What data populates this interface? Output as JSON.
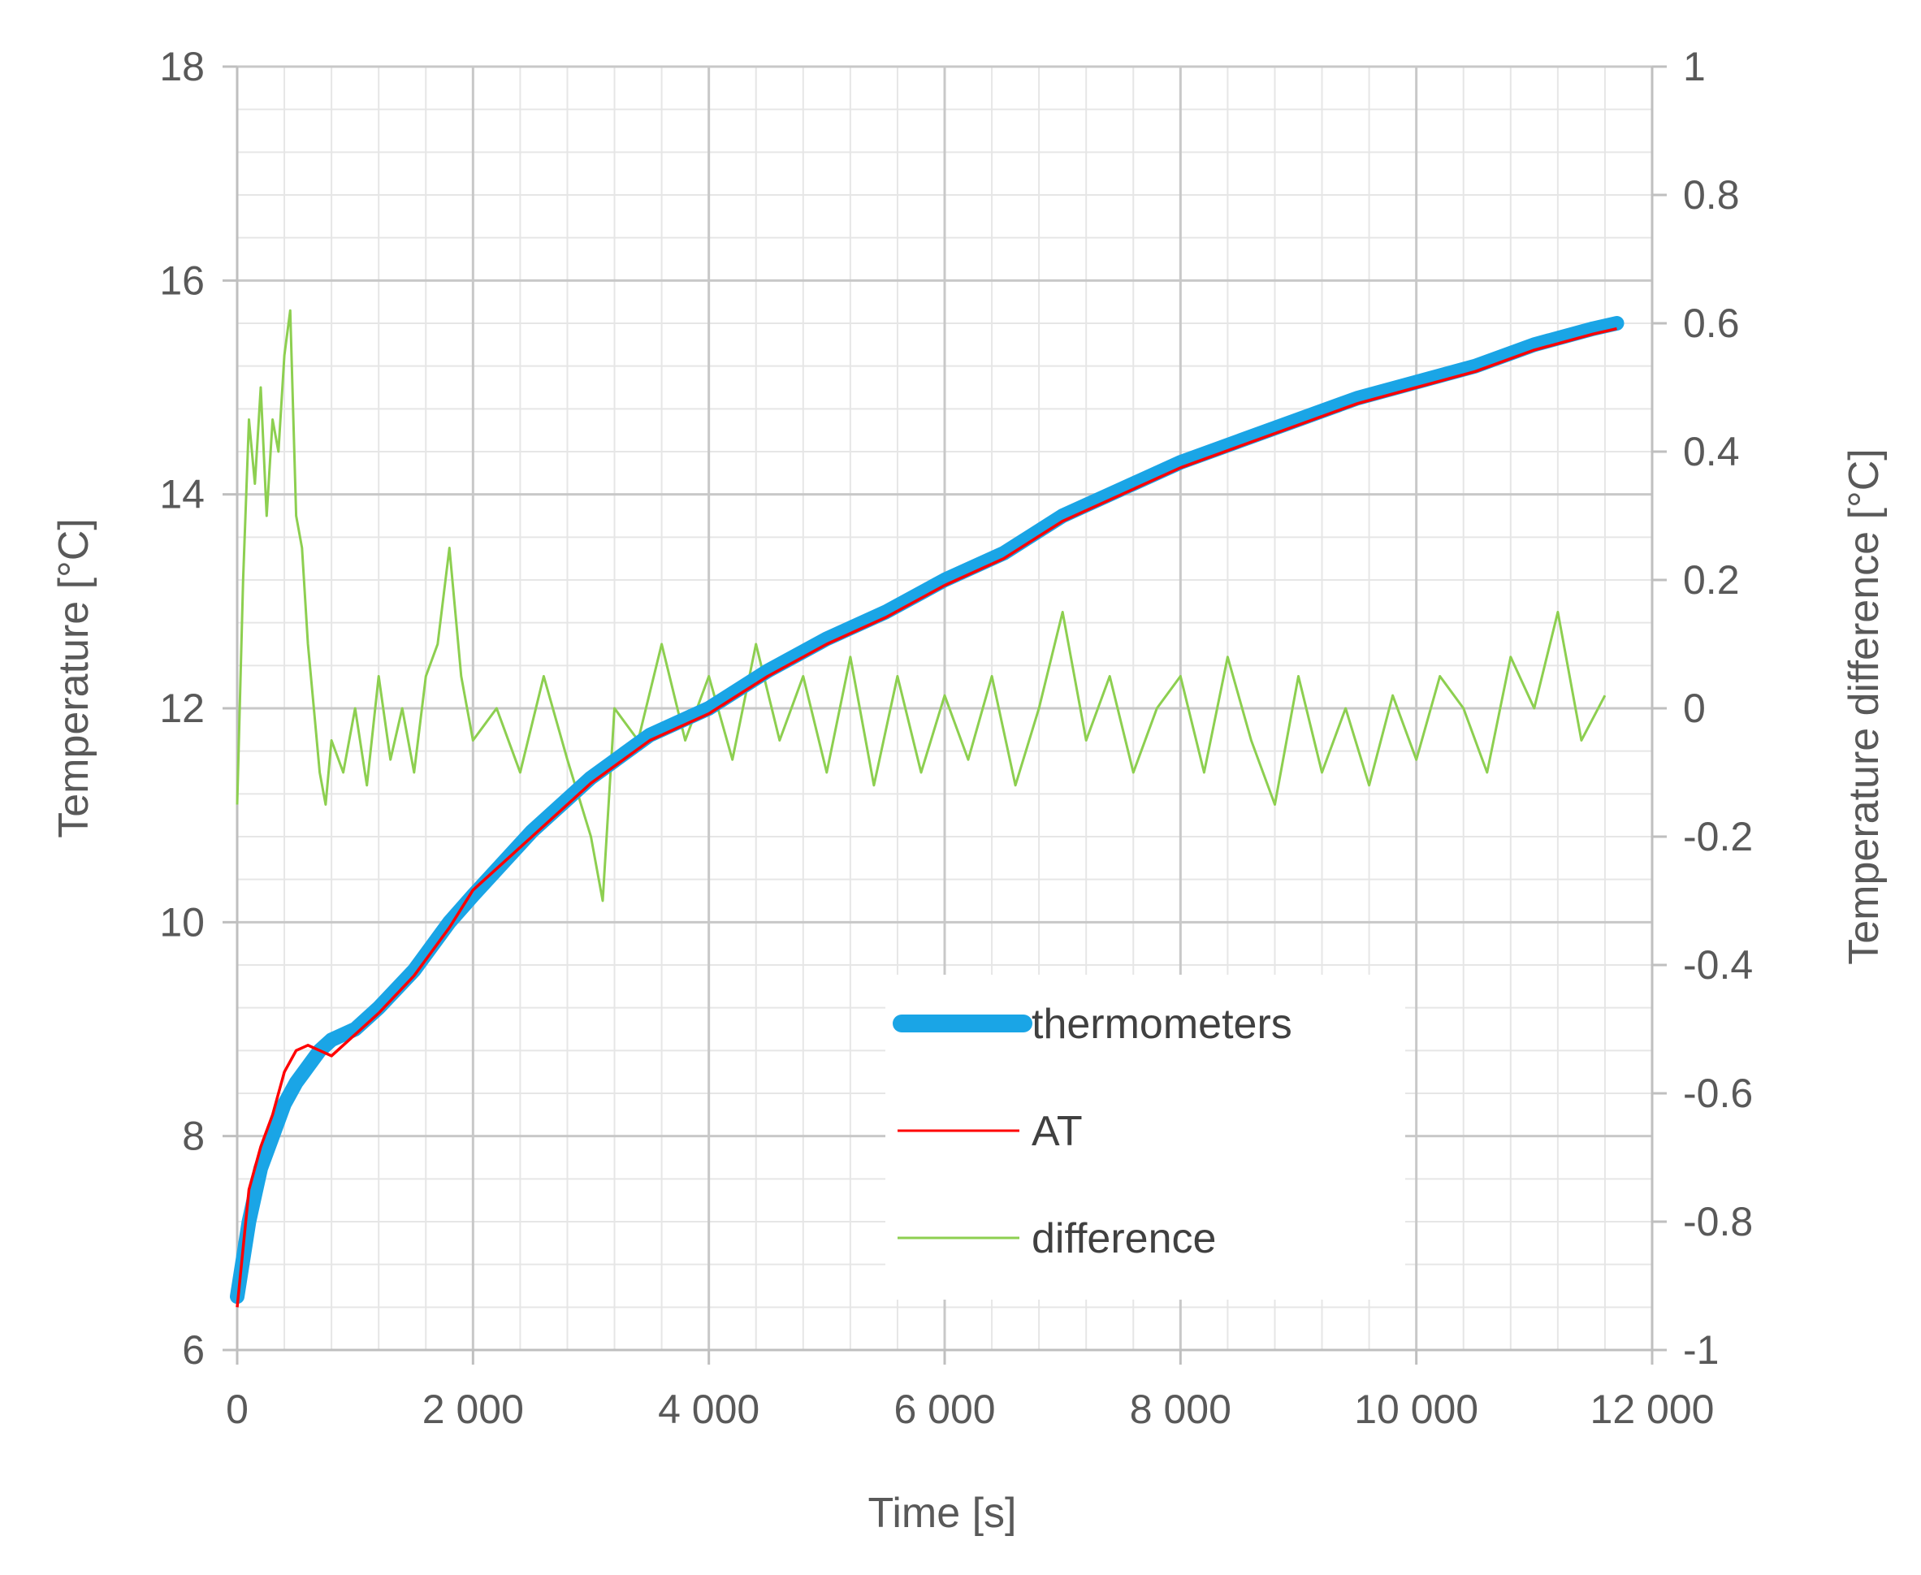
{
  "chart_data": {
    "type": "line",
    "title": "",
    "xlabel": "Time [s]",
    "ylabel": "Temperature [°C]",
    "y2label": "Temperature difference [°C]",
    "xlim": [
      0,
      12000
    ],
    "ylim": [
      6,
      18
    ],
    "y2lim": [
      -1,
      1
    ],
    "x_ticks": [
      0,
      2000,
      4000,
      6000,
      8000,
      10000,
      12000
    ],
    "x_tick_labels": [
      "0",
      "2 000",
      "4 000",
      "6 000",
      "8 000",
      "10 000",
      "12 000"
    ],
    "y_ticks": [
      6,
      8,
      10,
      12,
      14,
      16,
      18
    ],
    "y_tick_labels": [
      "6",
      "8",
      "10",
      "12",
      "14",
      "16",
      "18"
    ],
    "y2_ticks": [
      -1,
      -0.8,
      -0.6,
      -0.4,
      -0.2,
      0,
      0.2,
      0.4,
      0.6,
      0.8,
      1
    ],
    "y2_tick_labels": [
      "-1",
      "-0.8",
      "-0.6",
      "-0.4",
      "-0.2",
      "0",
      "0.2",
      "0.4",
      "0.6",
      "0.8",
      "1"
    ],
    "grid": "major and minor",
    "legend_position": "bottom-right",
    "series": [
      {
        "name": "thermometers",
        "axis": "left",
        "color": "#1aa5e6",
        "x": [
          0,
          100,
          200,
          300,
          400,
          500,
          600,
          700,
          800,
          1000,
          1200,
          1500,
          1800,
          2000,
          2500,
          3000,
          3500,
          4000,
          4500,
          5000,
          5500,
          6000,
          6500,
          7000,
          7500,
          8000,
          8500,
          9000,
          9500,
          10000,
          10500,
          11000,
          11500,
          11700
        ],
        "values": [
          6.5,
          7.2,
          7.7,
          8.0,
          8.3,
          8.5,
          8.65,
          8.8,
          8.9,
          9.0,
          9.2,
          9.55,
          10.0,
          10.25,
          10.85,
          11.35,
          11.75,
          12.0,
          12.35,
          12.65,
          12.9,
          13.2,
          13.45,
          13.8,
          14.05,
          14.3,
          14.5,
          14.7,
          14.9,
          15.05,
          15.2,
          15.4,
          15.55,
          15.6
        ]
      },
      {
        "name": "AT",
        "axis": "left",
        "color": "#ff0000",
        "x": [
          0,
          100,
          200,
          300,
          400,
          500,
          600,
          700,
          800,
          1000,
          1200,
          1500,
          1800,
          2000,
          2500,
          3000,
          3500,
          4000,
          4500,
          5000,
          5500,
          6000,
          6500,
          7000,
          7500,
          8000,
          8500,
          9000,
          9500,
          10000,
          10500,
          11000,
          11500,
          11700
        ],
        "values": [
          6.4,
          7.5,
          7.9,
          8.2,
          8.6,
          8.8,
          8.85,
          8.8,
          8.75,
          8.95,
          9.15,
          9.5,
          9.95,
          10.3,
          10.8,
          11.3,
          11.7,
          11.95,
          12.3,
          12.6,
          12.85,
          13.15,
          13.4,
          13.75,
          14.0,
          14.25,
          14.45,
          14.65,
          14.85,
          15.0,
          15.15,
          15.35,
          15.5,
          15.55
        ]
      },
      {
        "name": "difference",
        "axis": "right",
        "color": "#8dcf50",
        "x": [
          0,
          50,
          100,
          150,
          200,
          250,
          300,
          350,
          400,
          450,
          500,
          550,
          600,
          650,
          700,
          750,
          800,
          900,
          1000,
          1100,
          1200,
          1300,
          1400,
          1500,
          1600,
          1700,
          1800,
          1900,
          2000,
          2200,
          2400,
          2600,
          2800,
          3000,
          3100,
          3200,
          3400,
          3600,
          3800,
          4000,
          4200,
          4400,
          4600,
          4800,
          5000,
          5200,
          5400,
          5600,
          5800,
          6000,
          6200,
          6400,
          6600,
          6800,
          7000,
          7200,
          7400,
          7600,
          7800,
          8000,
          8200,
          8400,
          8600,
          8800,
          9000,
          9200,
          9400,
          9600,
          9800,
          10000,
          10200,
          10400,
          10600,
          10800,
          11000,
          11200,
          11400,
          11600
        ],
        "values": [
          -0.15,
          0.2,
          0.45,
          0.35,
          0.5,
          0.3,
          0.45,
          0.4,
          0.55,
          0.62,
          0.3,
          0.25,
          0.1,
          0.0,
          -0.1,
          -0.15,
          -0.05,
          -0.1,
          0.0,
          -0.12,
          0.05,
          -0.08,
          0.0,
          -0.1,
          0.05,
          0.1,
          0.25,
          0.05,
          -0.05,
          0.0,
          -0.1,
          0.05,
          -0.08,
          -0.2,
          -0.3,
          0.0,
          -0.05,
          0.1,
          -0.05,
          0.05,
          -0.08,
          0.1,
          -0.05,
          0.05,
          -0.1,
          0.08,
          -0.12,
          0.05,
          -0.1,
          0.02,
          -0.08,
          0.05,
          -0.12,
          0.0,
          0.15,
          -0.05,
          0.05,
          -0.1,
          0.0,
          0.05,
          -0.1,
          0.08,
          -0.05,
          -0.15,
          0.05,
          -0.1,
          0.0,
          -0.12,
          0.02,
          -0.08,
          0.05,
          0.0,
          -0.1,
          0.08,
          0.0,
          0.15,
          -0.05,
          0.02
        ]
      }
    ]
  }
}
